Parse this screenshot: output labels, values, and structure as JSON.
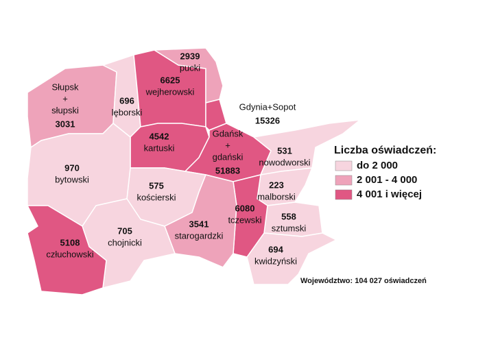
{
  "regions": [
    {
      "label": [
        "Słupsk",
        "+",
        "słupski"
      ],
      "value": 3031,
      "color": "#eea3ba"
    },
    {
      "label": [
        "lęborski"
      ],
      "value": 696,
      "color": "#f7d5df"
    },
    {
      "label": [
        "wejherowski"
      ],
      "value": 6625,
      "color": "#e05783"
    },
    {
      "label": [
        "pucki"
      ],
      "value": 2939,
      "color": "#eea3ba"
    },
    {
      "label": [
        "Gdynia+Sopot"
      ],
      "value": 15326,
      "color": "#e05783"
    },
    {
      "label": [
        "kartuski"
      ],
      "value": 4542,
      "color": "#e05783"
    },
    {
      "label": [
        "Gdańsk",
        "+",
        "gdański"
      ],
      "value": 51883,
      "color": "#e05783"
    },
    {
      "label": [
        "nowodworski"
      ],
      "value": 531,
      "color": "#f7d5df"
    },
    {
      "label": [
        "malborski"
      ],
      "value": 223,
      "color": "#f7d5df"
    },
    {
      "label": [
        "sztumski"
      ],
      "value": 558,
      "color": "#f7d5df"
    },
    {
      "label": [
        "kwidzyński"
      ],
      "value": 694,
      "color": "#f7d5df"
    },
    {
      "label": [
        "tczewski"
      ],
      "value": 6080,
      "color": "#e05783"
    },
    {
      "label": [
        "starogardzki"
      ],
      "value": 3541,
      "color": "#eea3ba"
    },
    {
      "label": [
        "kościerski"
      ],
      "value": 575,
      "color": "#f7d5df"
    },
    {
      "label": [
        "bytowski"
      ],
      "value": 970,
      "color": "#f7d5df"
    },
    {
      "label": [
        "chojnicki"
      ],
      "value": 705,
      "color": "#f7d5df"
    },
    {
      "label": [
        "człuchowski"
      ],
      "value": 5108,
      "color": "#e05783"
    }
  ],
  "legend": {
    "title": "Liczba oświadczeń:",
    "items": [
      {
        "label": "do 2 000",
        "color": "#f7d5df"
      },
      {
        "label": "2 001 - 4 000",
        "color": "#eea3ba"
      },
      {
        "label": "4 001 i więcej",
        "color": "#e05783"
      }
    ]
  },
  "footer": "Województwo: 104 027 oświadczeń"
}
